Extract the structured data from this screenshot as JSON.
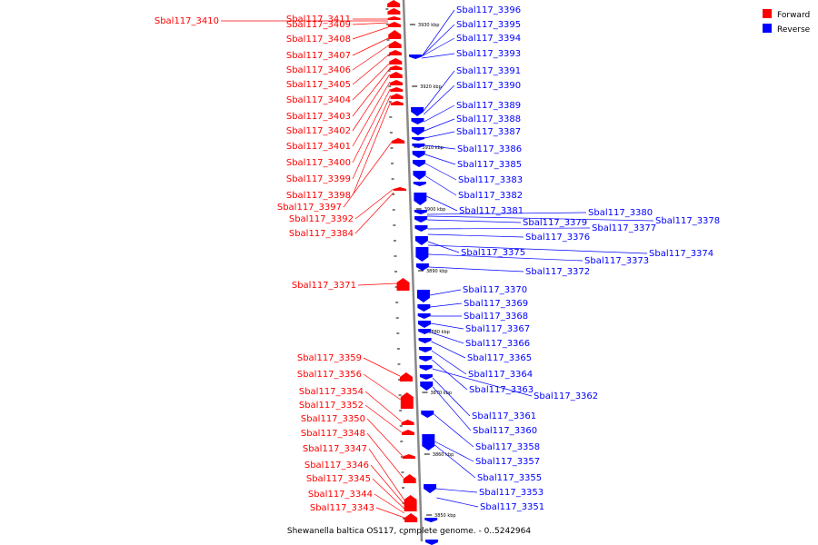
{
  "legend": {
    "items": [
      {
        "label": "Forward",
        "color": "#ff0000"
      },
      {
        "label": "Reverse",
        "color": "#0000ff"
      }
    ]
  },
  "colors": {
    "forward": "#ff0000",
    "reverse": "#0000ff",
    "backbone": "#888888"
  },
  "caption": "Shewanella baltica OS117, complete genome. - 0..5242964",
  "ticks": [
    "3930 kbp",
    "3920 kbp",
    "3910 kbp",
    "3900 kbp",
    "3890 kbp",
    "3880 kbp",
    "3870 kbp",
    "3860 kbp",
    "3850 kbp"
  ],
  "forward_genes": [
    "Sbal117_3411",
    "Sbal117_3410",
    "Sbal117_3409",
    "Sbal117_3408",
    "Sbal117_3407",
    "Sbal117_3406",
    "Sbal117_3405",
    "Sbal117_3404",
    "Sbal117_3403",
    "Sbal117_3402",
    "Sbal117_3401",
    "Sbal117_3400",
    "Sbal117_3399",
    "Sbal117_3398",
    "Sbal117_3397",
    "Sbal117_3392",
    "Sbal117_3384",
    "Sbal117_3371",
    "Sbal117_3359",
    "Sbal117_3356",
    "Sbal117_3354",
    "Sbal117_3352",
    "Sbal117_3350",
    "Sbal117_3348",
    "Sbal117_3347",
    "Sbal117_3346",
    "Sbal117_3345",
    "Sbal117_3344",
    "Sbal117_3343"
  ],
  "reverse_genes": [
    "Sbal117_3396",
    "Sbal117_3395",
    "Sbal117_3394",
    "Sbal117_3393",
    "Sbal117_3391",
    "Sbal117_3390",
    "Sbal117_3389",
    "Sbal117_3388",
    "Sbal117_3387",
    "Sbal117_3386",
    "Sbal117_3385",
    "Sbal117_3383",
    "Sbal117_3382",
    "Sbal117_3381",
    "Sbal117_3380",
    "Sbal117_3379",
    "Sbal117_3378",
    "Sbal117_3377",
    "Sbal117_3376",
    "Sbal117_3375",
    "Sbal117_3374",
    "Sbal117_3373",
    "Sbal117_3372",
    "Sbal117_3370",
    "Sbal117_3369",
    "Sbal117_3368",
    "Sbal117_3367",
    "Sbal117_3366",
    "Sbal117_3365",
    "Sbal117_3364",
    "Sbal117_3363",
    "Sbal117_3362",
    "Sbal117_3361",
    "Sbal117_3360",
    "Sbal117_3358",
    "Sbal117_3357",
    "Sbal117_3355",
    "Sbal117_3353",
    "Sbal117_3351"
  ]
}
